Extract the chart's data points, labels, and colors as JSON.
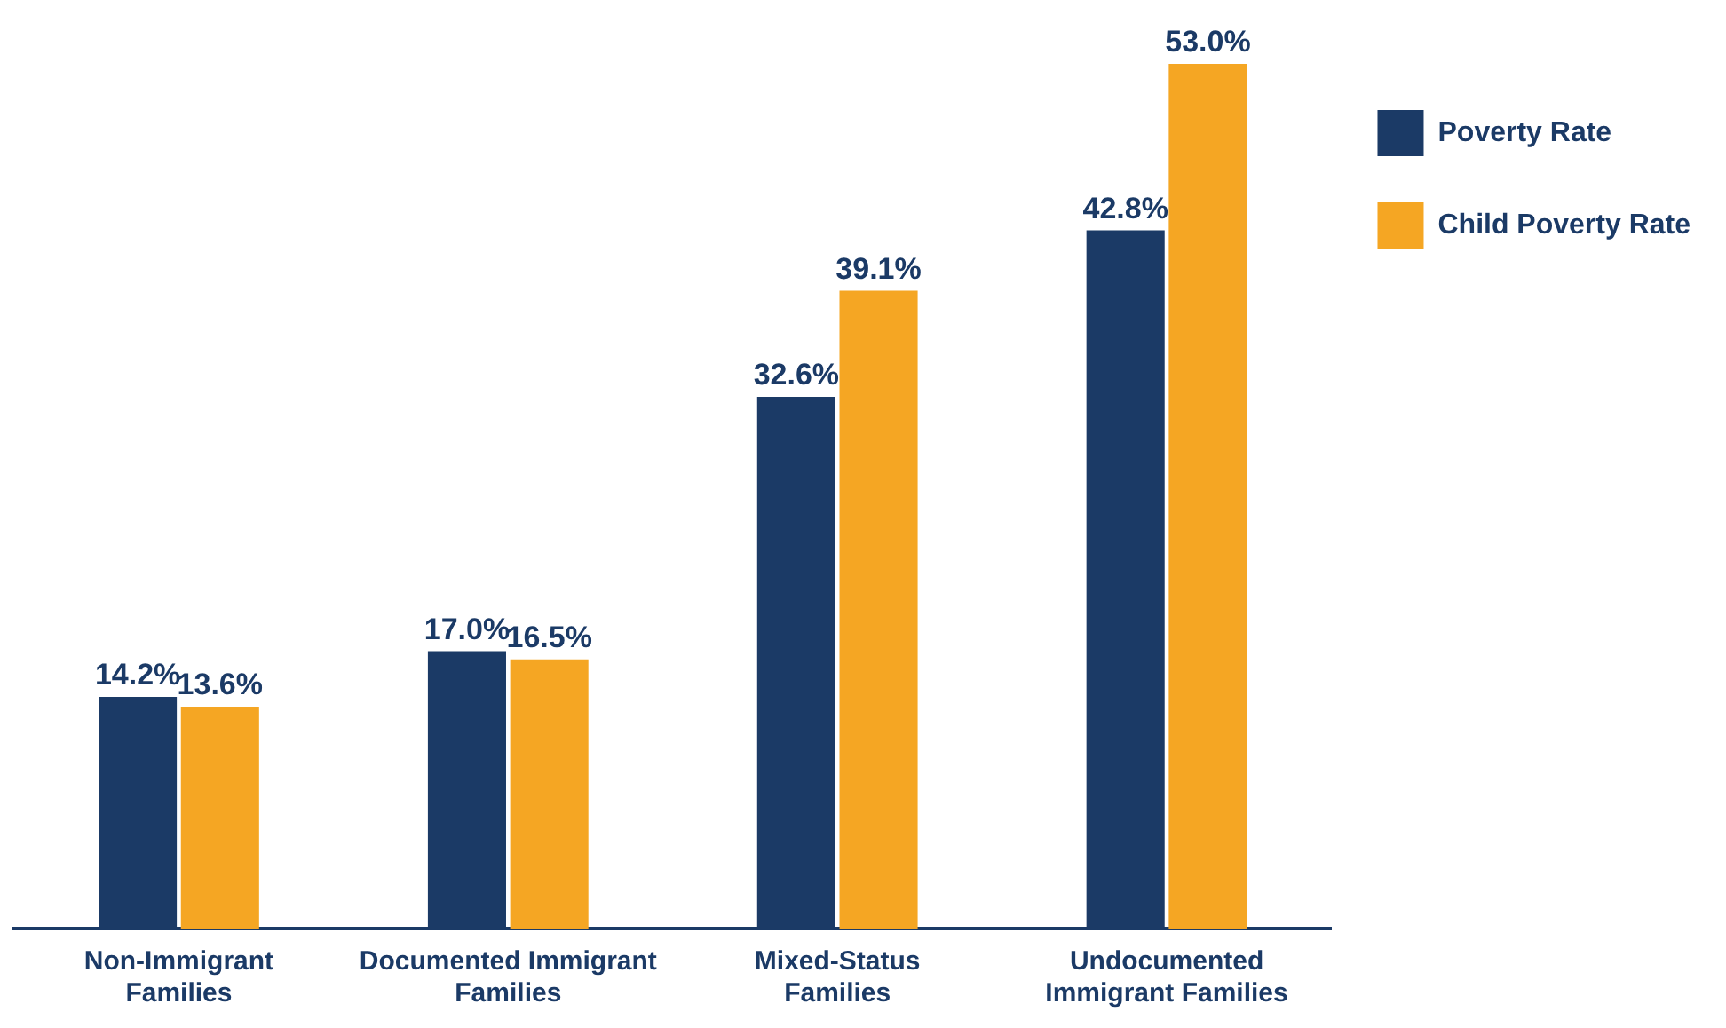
{
  "chart_data": {
    "type": "bar",
    "categories": [
      "Non-Immigrant Families",
      "Documented Immigrant Families",
      "Mixed-Status Families",
      "Undocumented Immigrant Families"
    ],
    "series": [
      {
        "name": "Poverty Rate",
        "color": "#1b3a66",
        "values": [
          14.2,
          17.0,
          32.6,
          42.8
        ],
        "value_labels": [
          "14.2%",
          "17.0%",
          "32.6%",
          "42.8%"
        ]
      },
      {
        "name": "Child Poverty Rate",
        "color": "#f5a623",
        "values": [
          13.6,
          16.5,
          39.1,
          53.0
        ],
        "value_labels": [
          "13.6%",
          "16.5%",
          "39.1%",
          "53.0%"
        ]
      }
    ],
    "legend": "top right",
    "grid": false
  }
}
